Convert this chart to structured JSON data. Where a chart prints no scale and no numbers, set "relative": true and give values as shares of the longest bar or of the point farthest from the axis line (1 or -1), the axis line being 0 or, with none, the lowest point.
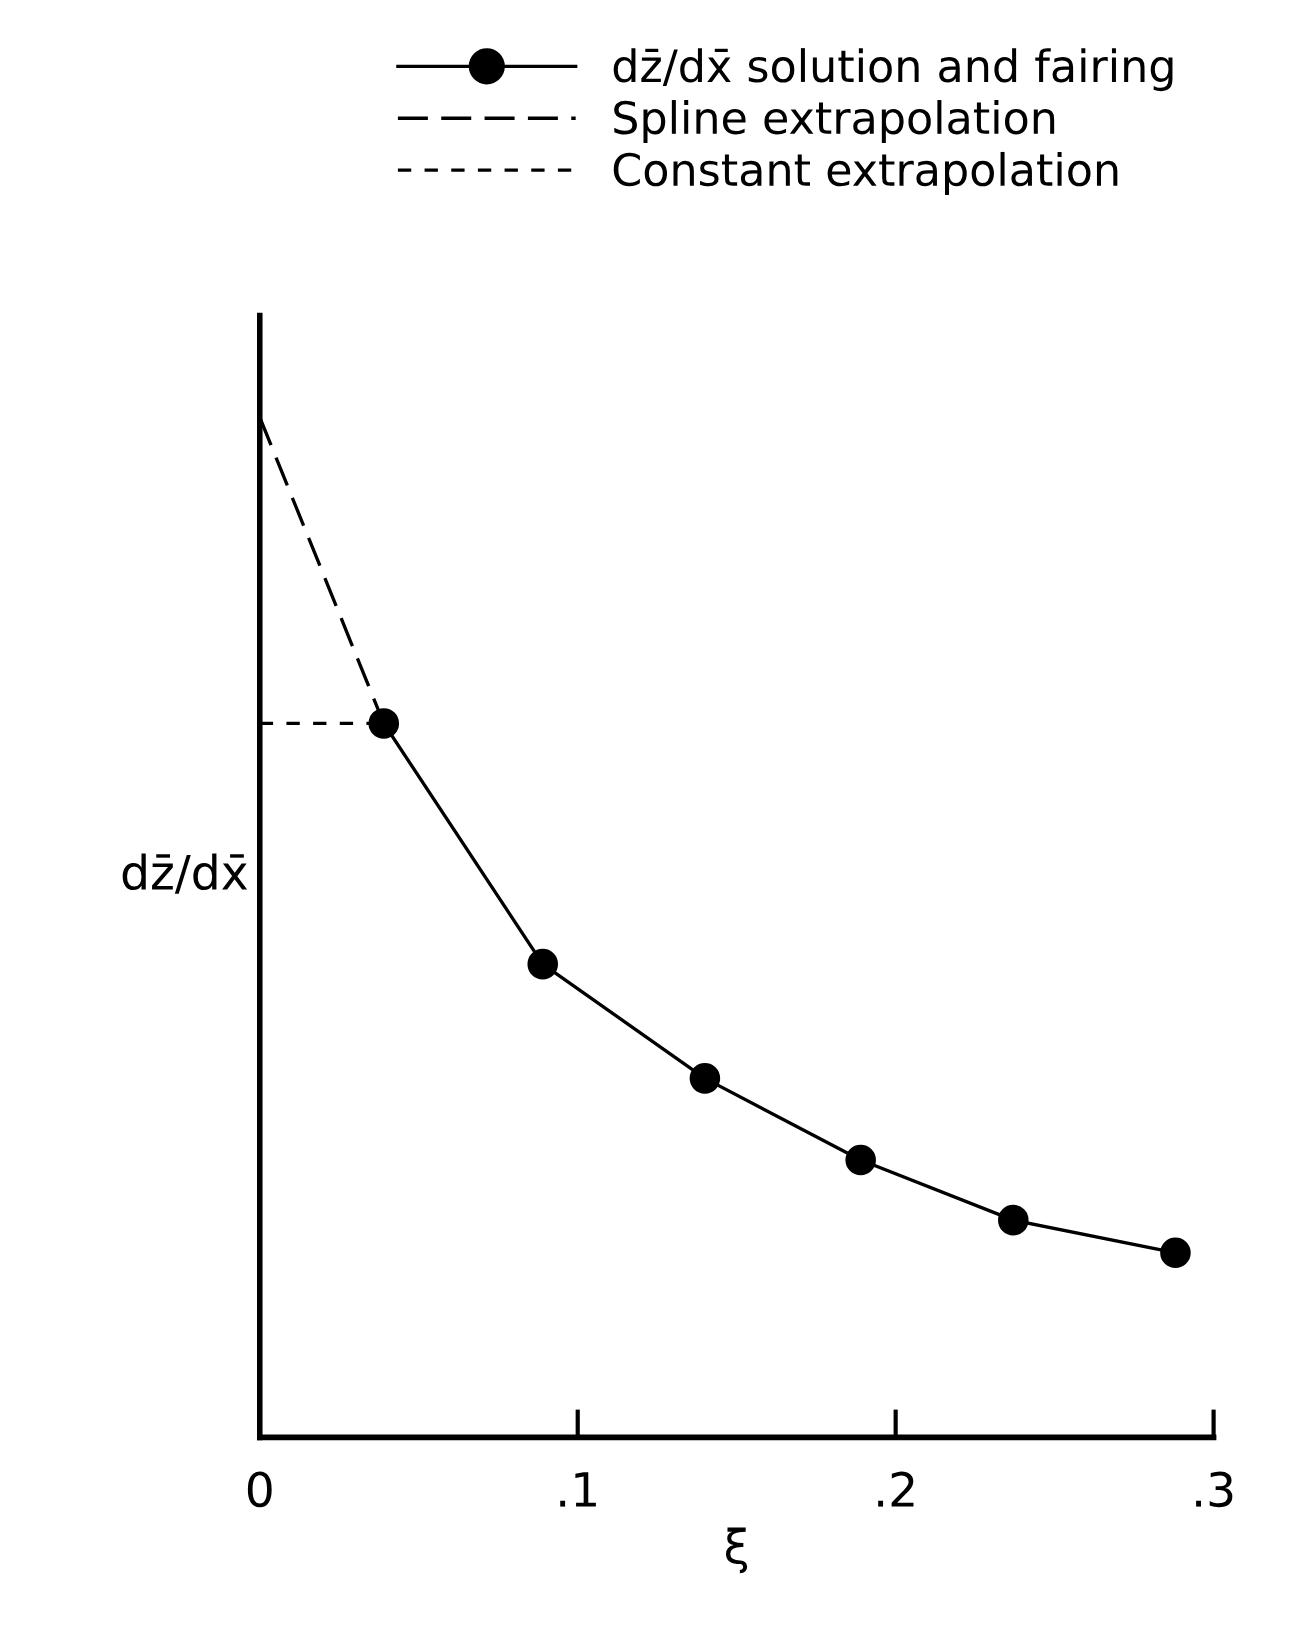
{
  "chart_data": {
    "type": "line",
    "relative": true,
    "xlabel": "ξ",
    "ylabel": "dz̄/dx̄",
    "xlim": [
      0,
      0.3
    ],
    "xticks": [
      0,
      {
        "value": 0.1,
        "label": ".1"
      },
      {
        "value": 0.2,
        "label": ".2"
      },
      {
        "value": 0.3,
        "label": ".3"
      }
    ],
    "tick_labels": "x",
    "grid": false,
    "legend": "top",
    "series": [
      {
        "name": "dz̄/dx̄ solution and fairing",
        "color": "#000000",
        "marker": "circle",
        "line_style": "solid",
        "x": [
          0.039,
          0.089,
          0.14,
          0.189,
          0.237,
          0.288
        ],
        "values": [
          0.7,
          0.464,
          0.352,
          0.272,
          0.213,
          0.181
        ]
      },
      {
        "name": "Spline extrapolation",
        "color": "#000000",
        "marker": "none",
        "line_style": "dashed",
        "x": [
          0,
          0.039
        ],
        "values": [
          1,
          0.7
        ]
      },
      {
        "name": "Constant extrapolation",
        "color": "#000000",
        "marker": "none",
        "line_style": "dotted",
        "x": [
          0,
          0.039
        ],
        "values": [
          0.7,
          0.7
        ]
      }
    ]
  }
}
